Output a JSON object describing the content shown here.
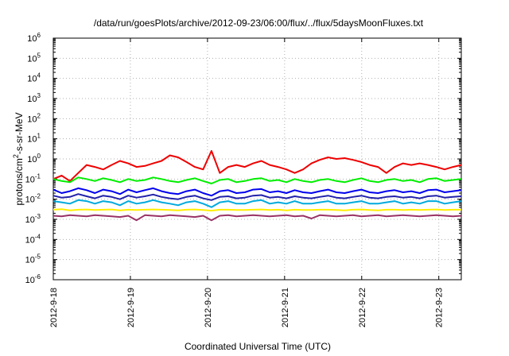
{
  "chart_data": {
    "type": "line",
    "title": "/data/run/goesPlots/archive/2012-09-23/06:00/flux/../flux/5daysMoonFluxes.txt",
    "xlabel": "Coordinated Universal Time (UTC)",
    "ylabel_parts": [
      "protons/cm",
      "2",
      "-s-sr-MeV"
    ],
    "yscale": "log",
    "ylim": [
      1e-06,
      1000000.0
    ],
    "ytick_exponents": [
      -6,
      -5,
      -4,
      -3,
      -2,
      -1,
      0,
      1,
      2,
      3,
      4,
      5,
      6
    ],
    "ytick_base": "10",
    "x_range_days": [
      "2012-9-18",
      "2012-9-23 07:00"
    ],
    "x_ticks": [
      "2012-9-18",
      "2012-9-19",
      "2012-9-20",
      "2012-9-21",
      "2012-9-22",
      "2012-9-23"
    ],
    "grid": true,
    "legend": "none",
    "series": [
      {
        "color": "#ee0000",
        "values": [
          0.1,
          0.15,
          0.08,
          0.2,
          0.5,
          0.4,
          0.3,
          0.5,
          0.8,
          0.6,
          0.4,
          0.45,
          0.6,
          0.8,
          1.5,
          1.2,
          0.7,
          0.4,
          0.3,
          2.5,
          0.2,
          0.4,
          0.5,
          0.4,
          0.6,
          0.8,
          0.5,
          0.4,
          0.3,
          0.2,
          0.3,
          0.6,
          0.9,
          1.2,
          1.0,
          1.1,
          0.9,
          0.7,
          0.5,
          0.4,
          0.2,
          0.4,
          0.6,
          0.5,
          0.6,
          0.5,
          0.4,
          0.3,
          0.4,
          0.5
        ]
      },
      {
        "color": "#00ee00",
        "values": [
          0.1,
          0.08,
          0.07,
          0.12,
          0.1,
          0.08,
          0.11,
          0.09,
          0.07,
          0.1,
          0.08,
          0.09,
          0.12,
          0.1,
          0.08,
          0.07,
          0.09,
          0.11,
          0.08,
          0.06,
          0.09,
          0.1,
          0.07,
          0.08,
          0.1,
          0.11,
          0.08,
          0.09,
          0.07,
          0.1,
          0.08,
          0.07,
          0.09,
          0.1,
          0.08,
          0.07,
          0.09,
          0.11,
          0.08,
          0.07,
          0.09,
          0.1,
          0.08,
          0.09,
          0.07,
          0.1,
          0.11,
          0.08,
          0.09,
          0.1
        ]
      },
      {
        "color": "#0000ee",
        "values": [
          0.03,
          0.02,
          0.025,
          0.035,
          0.028,
          0.02,
          0.03,
          0.025,
          0.018,
          0.03,
          0.022,
          0.028,
          0.035,
          0.025,
          0.02,
          0.018,
          0.025,
          0.03,
          0.02,
          0.015,
          0.025,
          0.028,
          0.02,
          0.022,
          0.03,
          0.032,
          0.022,
          0.025,
          0.02,
          0.028,
          0.022,
          0.02,
          0.025,
          0.03,
          0.022,
          0.02,
          0.025,
          0.03,
          0.022,
          0.02,
          0.025,
          0.028,
          0.022,
          0.025,
          0.02,
          0.028,
          0.03,
          0.022,
          0.025,
          0.028
        ]
      },
      {
        "color": "#2222aa",
        "values": [
          0.015,
          0.012,
          0.013,
          0.018,
          0.014,
          0.011,
          0.015,
          0.013,
          0.01,
          0.015,
          0.012,
          0.014,
          0.017,
          0.013,
          0.011,
          0.01,
          0.013,
          0.015,
          0.011,
          0.009,
          0.013,
          0.014,
          0.011,
          0.012,
          0.015,
          0.016,
          0.012,
          0.013,
          0.011,
          0.014,
          0.012,
          0.011,
          0.013,
          0.015,
          0.012,
          0.011,
          0.013,
          0.015,
          0.012,
          0.011,
          0.013,
          0.014,
          0.012,
          0.013,
          0.011,
          0.014,
          0.015,
          0.012,
          0.013,
          0.014
        ]
      },
      {
        "color": "#00aadd",
        "values": [
          0.008,
          0.007,
          0.006,
          0.009,
          0.008,
          0.006,
          0.008,
          0.007,
          0.005,
          0.008,
          0.006,
          0.007,
          0.009,
          0.007,
          0.006,
          0.005,
          0.007,
          0.008,
          0.006,
          0.004,
          0.007,
          0.008,
          0.006,
          0.006,
          0.008,
          0.009,
          0.006,
          0.007,
          0.006,
          0.008,
          0.006,
          0.006,
          0.007,
          0.008,
          0.006,
          0.006,
          0.007,
          0.008,
          0.006,
          0.006,
          0.007,
          0.008,
          0.006,
          0.007,
          0.006,
          0.008,
          0.008,
          0.006,
          0.007,
          0.008
        ]
      },
      {
        "color": "#ffee00",
        "values": [
          0.003,
          0.0032,
          0.0028,
          0.003,
          0.0031,
          0.0029,
          0.003,
          0.0031,
          0.0028,
          0.003,
          0.0029,
          0.003,
          0.0031,
          0.003,
          0.0029,
          0.0028,
          0.003,
          0.0031,
          0.0029,
          0.0027,
          0.003,
          0.003,
          0.0029,
          0.0029,
          0.003,
          0.0031,
          0.0029,
          0.003,
          0.0028,
          0.003,
          0.0029,
          0.0029,
          0.003,
          0.003,
          0.0029,
          0.0028,
          0.003,
          0.0031,
          0.0029,
          0.0028,
          0.003,
          0.003,
          0.0029,
          0.003,
          0.0029,
          0.003,
          0.0031,
          0.0029,
          0.003,
          0.003
        ]
      },
      {
        "color": "#993366",
        "values": [
          0.0015,
          0.0014,
          0.0016,
          0.0015,
          0.0014,
          0.0016,
          0.0015,
          0.0014,
          0.0013,
          0.0015,
          0.0009,
          0.0016,
          0.0015,
          0.0014,
          0.0016,
          0.0015,
          0.0014,
          0.0013,
          0.0015,
          0.0009,
          0.0015,
          0.0016,
          0.0014,
          0.0015,
          0.0016,
          0.0015,
          0.0014,
          0.0015,
          0.0016,
          0.0014,
          0.0015,
          0.0011,
          0.0016,
          0.0015,
          0.0014,
          0.0015,
          0.0016,
          0.0014,
          0.0015,
          0.0016,
          0.0014,
          0.0015,
          0.0016,
          0.0015,
          0.0014,
          0.0015,
          0.0016,
          0.0015,
          0.0014,
          0.0015
        ]
      }
    ]
  }
}
